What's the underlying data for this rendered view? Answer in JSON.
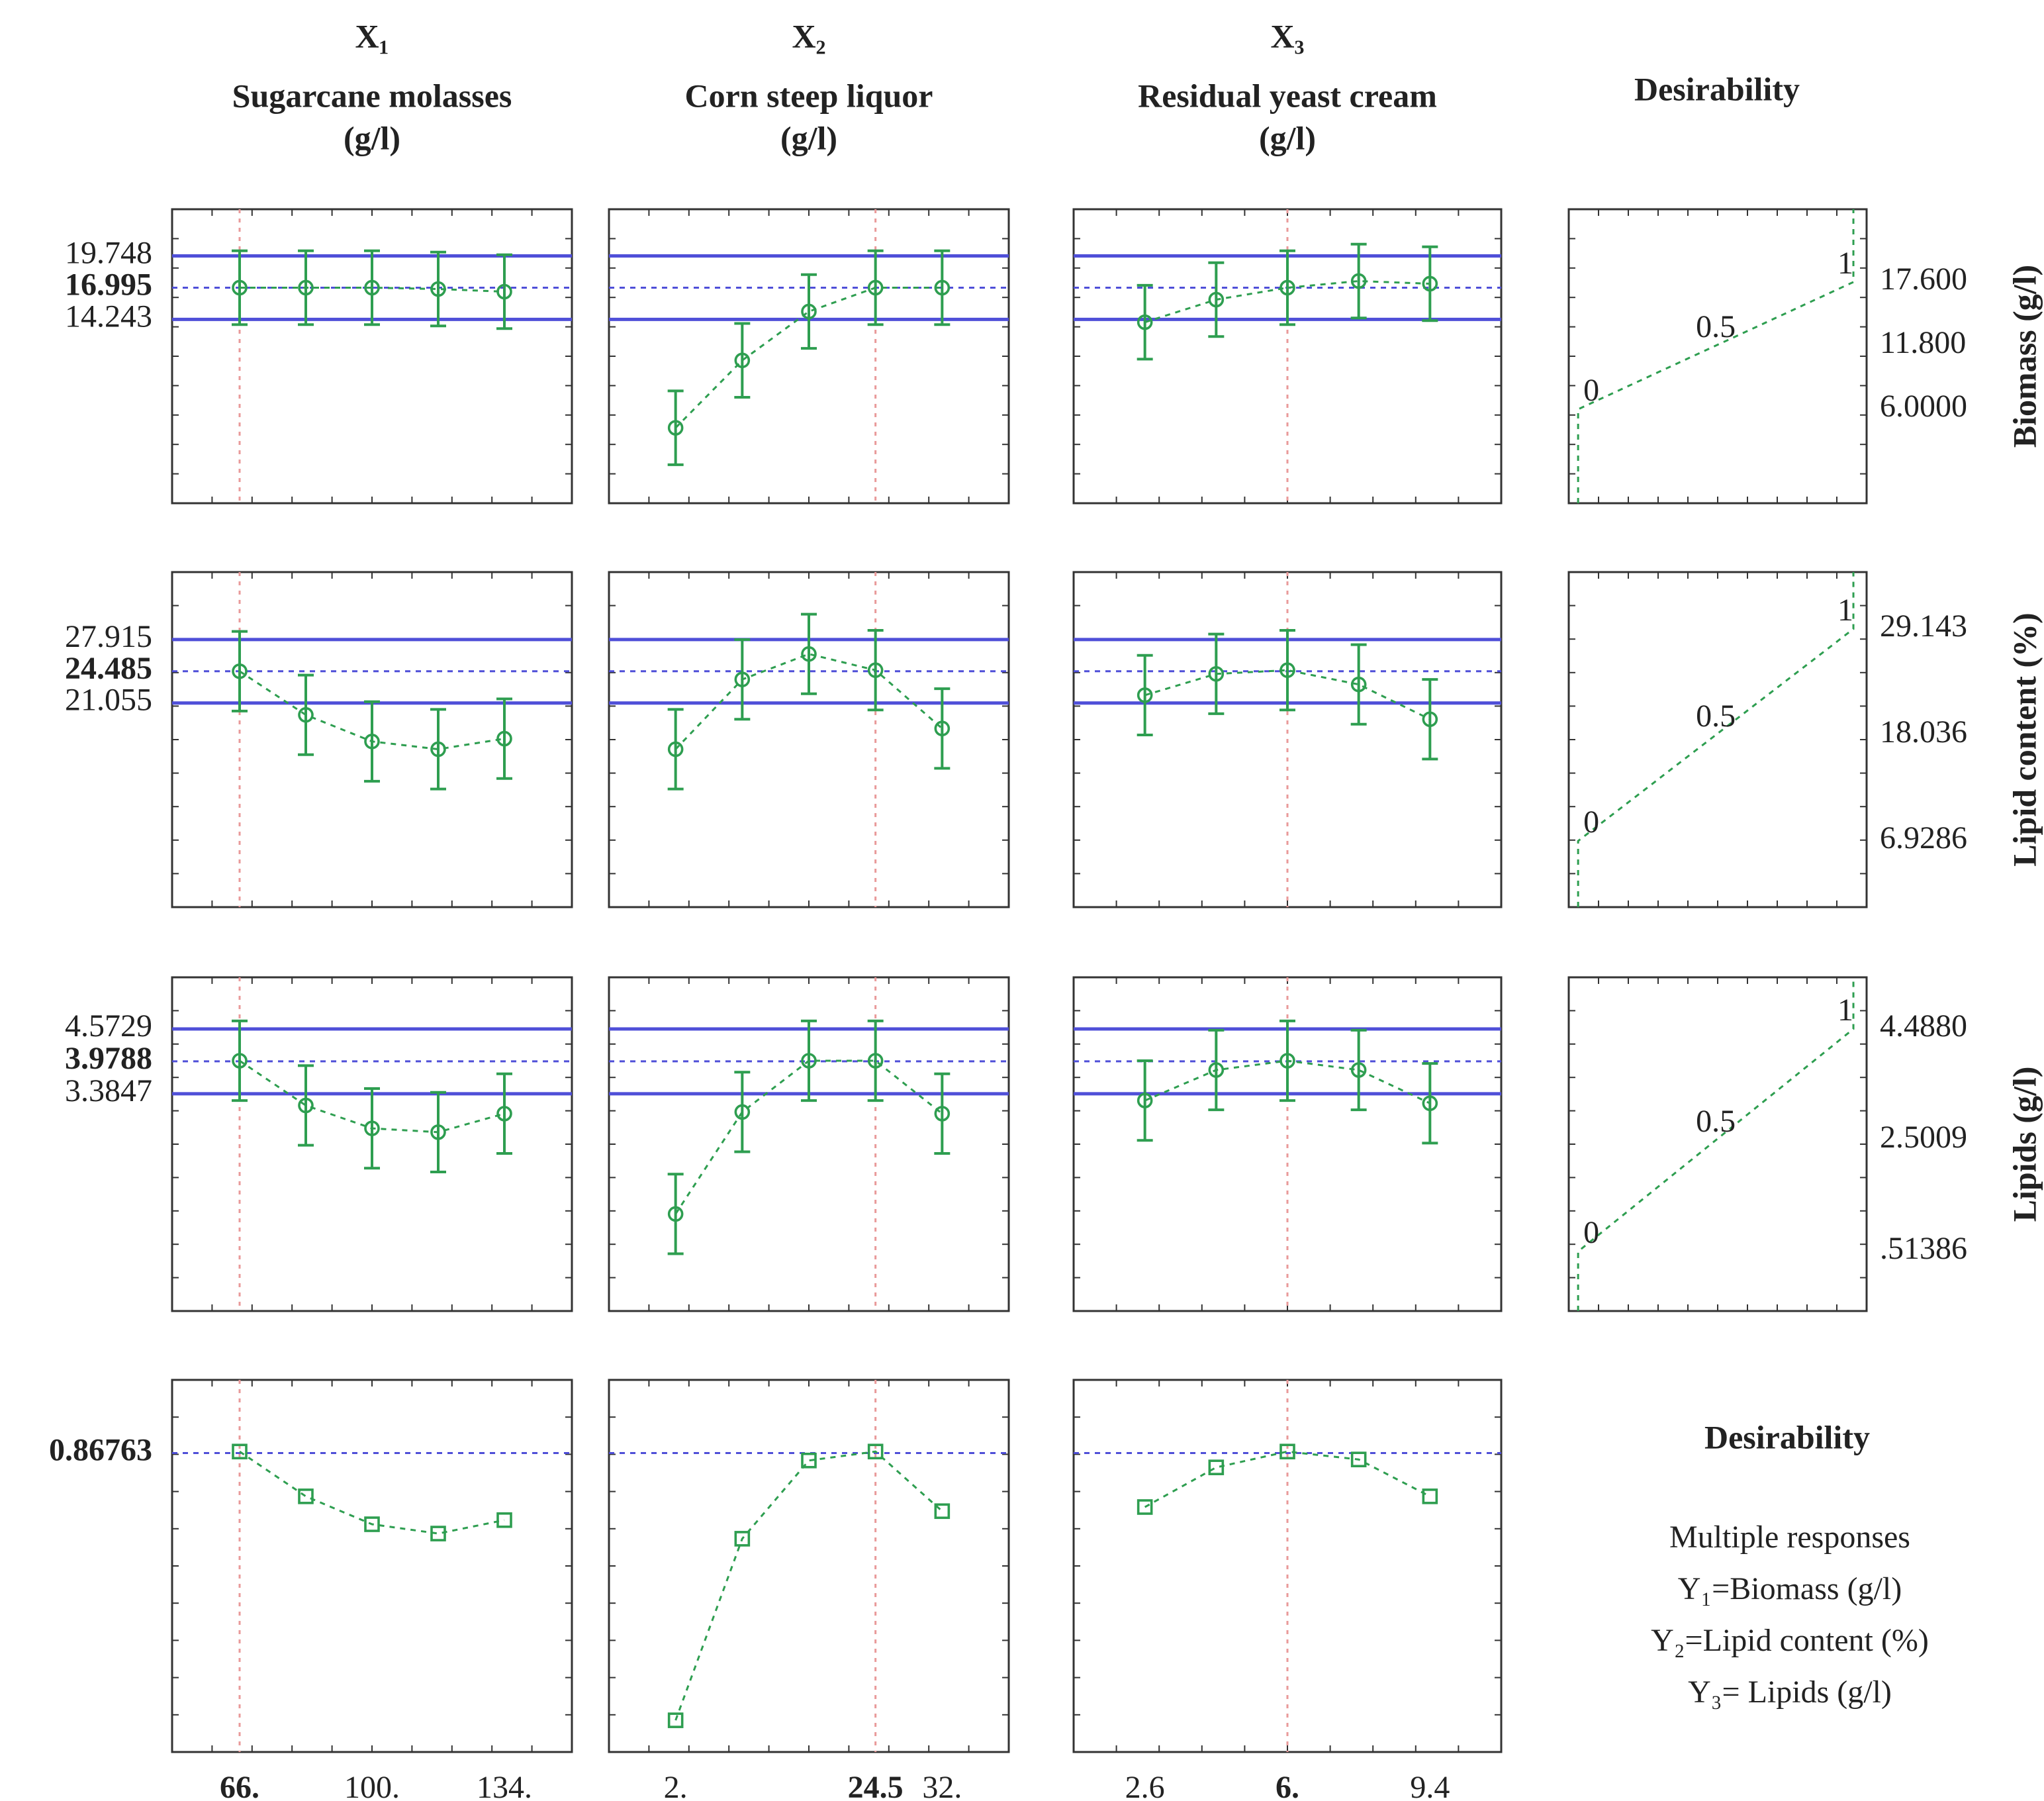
{
  "chart_data": {
    "type": "profiler",
    "colors": {
      "points": "#2e9e50",
      "limits": "#4f4fd8",
      "current": "#e99a9a"
    },
    "factors": [
      {
        "symbol": "X₁",
        "name": "Sugarcane molasses",
        "unit": "(g/l)",
        "x": [
          66,
          83,
          100,
          117,
          134
        ],
        "xlim": [
          48.66,
          151.34
        ],
        "xticks": [
          {
            "value": 66,
            "label": "66."
          },
          {
            "value": 100,
            "label": "100."
          },
          {
            "value": 134,
            "label": "134."
          }
        ],
        "current": 66
      },
      {
        "symbol": "X₂",
        "name": "Corn steep liquor",
        "unit": "(g/l)",
        "x": [
          2,
          9.5,
          17,
          24.5,
          32
        ],
        "xlim": [
          -5.5,
          39.5
        ],
        "xticks": [
          {
            "value": 2,
            "label": "2."
          },
          24.5,
          {
            "value": 32,
            "label": "32."
          }
        ],
        "current": 24.5
      },
      {
        "symbol": "X₃",
        "name": "Residual yeast cream",
        "unit": "(g/l)",
        "x": [
          2.6,
          4.3,
          6,
          7.7,
          9.4
        ],
        "xlim": [
          0.9,
          11.1
        ],
        "xticks": [
          2.6,
          {
            "value": 6,
            "label": "6."
          },
          9.4
        ],
        "current": 6
      }
    ],
    "desirability_title": "Desirability",
    "desirability_ticks": [
      0,
      0.5,
      1
    ],
    "desirability_xlim": [
      -0.034,
      1.048
    ],
    "responses": [
      {
        "name": "Biomass (g/l)",
        "ylim": [
          -1.7,
          23.8
        ],
        "yticks": [
          19.748,
          16.995,
          14.243
        ],
        "series": [
          {
            "values": [
              16.995,
              16.995,
              16.995,
              16.88,
              16.65
            ],
            "errors": [
              3.2,
              3.2,
              3.2,
              3.2,
              3.2
            ]
          },
          {
            "values": [
              4.84,
              10.69,
              14.93,
              16.995,
              16.995
            ],
            "errors": [
              3.2,
              3.2,
              3.2,
              3.2,
              3.2
            ]
          },
          {
            "values": [
              14.0,
              15.96,
              16.995,
              17.57,
              17.34
            ],
            "errors": [
              3.2,
              3.2,
              3.2,
              3.2,
              3.2
            ]
          }
        ],
        "desirability": {
          "ylim": [
            -2.57,
            24.24
          ],
          "yticks": [
            {
              "value": 17.6,
              "label": "17.600"
            },
            {
              "value": 11.8,
              "label": "11.800"
            },
            {
              "value": 6,
              "label": "6.0000"
            }
          ]
        }
      },
      {
        "name": "Lipid content (%)",
        "ylim": [
          -1,
          35.2
        ],
        "yticks": [
          27.915,
          24.485,
          21.055
        ],
        "series": [
          {
            "values": [
              24.485,
              19.77,
              16.9,
              16.06,
              17.2
            ],
            "errors": [
              4.3,
              4.3,
              4.3,
              4.3,
              4.3
            ]
          },
          {
            "values": [
              16.06,
              23.6,
              26.35,
              24.6,
              18.3
            ],
            "errors": [
              4.3,
              4.3,
              4.3,
              4.3,
              4.3
            ]
          },
          {
            "values": [
              21.9,
              24.2,
              24.6,
              23.06,
              19.3
            ],
            "errors": [
              4.3,
              4.3,
              4.3,
              4.3,
              4.3
            ]
          }
        ],
        "desirability": {
          "ylim": [
            0,
            35.1
          ],
          "yticks": [
            29.143,
            18.036,
            6.9286
          ]
        }
      },
      {
        "name": "Lipids (g/l)",
        "ylim": [
          -0.6,
          5.52
        ],
        "yticks": [
          4.5729,
          3.9788,
          3.3847
        ],
        "series": [
          {
            "values": [
              3.99,
              3.17,
              2.75,
              2.68,
              3.02
            ],
            "errors": [
              0.73,
              0.73,
              0.73,
              0.73,
              0.73
            ]
          },
          {
            "values": [
              1.18,
              3.05,
              3.99,
              3.99,
              3.02
            ],
            "errors": [
              0.73,
              0.73,
              0.73,
              0.73,
              0.73
            ]
          },
          {
            "values": [
              3.26,
              3.82,
              3.99,
              3.82,
              3.21
            ],
            "errors": [
              0.73,
              0.73,
              0.73,
              0.73,
              0.73
            ]
          }
        ],
        "desirability": {
          "ylim": [
            -0.55,
            5.41
          ],
          "yticks": [
            {
              "value": 4.488,
              "label": "4.4880"
            },
            2.5009,
            {
              "value": 0.51386,
              "label": ".51386"
            }
          ]
        }
      }
    ],
    "overall": {
      "ylim": [
        0,
        1.08
      ],
      "yticks": [
        0.86763
      ],
      "series": [
        {
          "values": [
            0.872,
            0.742,
            0.661,
            0.634,
            0.673
          ]
        },
        {
          "values": [
            0.092,
            0.619,
            0.846,
            0.872,
            0.699
          ]
        },
        {
          "values": [
            0.711,
            0.826,
            0.872,
            0.849,
            0.742
          ]
        }
      ]
    },
    "legend": {
      "title": "Desirability",
      "lines": [
        "Multiple responses",
        "Y₁=Biomass (g/l)",
        "Y₂=Lipid content (%)",
        "Y₃= Lipids (g/l)"
      ]
    }
  }
}
